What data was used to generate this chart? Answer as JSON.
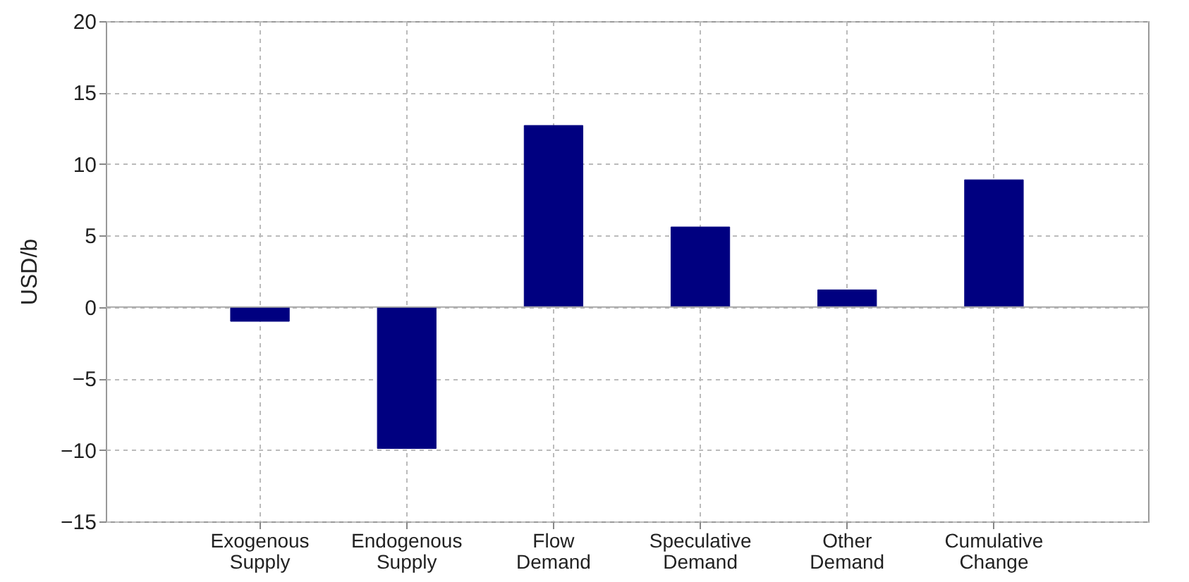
{
  "chart_data": {
    "type": "bar",
    "ylabel": "USD/b",
    "categories": [
      "Exogenous Supply",
      "Endogenous Supply",
      "Flow Demand",
      "Speculative Demand",
      "Other Demand",
      "Cumulative Change"
    ],
    "values": [
      -1.0,
      -9.9,
      12.7,
      5.6,
      1.2,
      8.9
    ],
    "color": "#000080",
    "ylim": [
      -15,
      20
    ],
    "yticks": [
      -15,
      -10,
      -5,
      0,
      5,
      10,
      15,
      20
    ],
    "grid": true
  }
}
